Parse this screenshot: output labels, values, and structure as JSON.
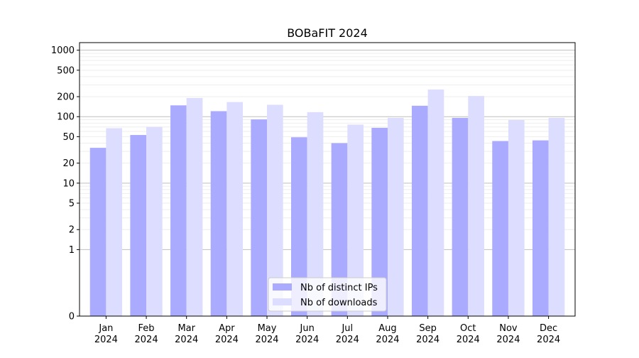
{
  "chart_data": {
    "type": "bar",
    "title": "BOBaFIT 2024",
    "xlabel": "",
    "ylabel": "",
    "yscale": "symlog",
    "ylim": [
      0,
      1300
    ],
    "yticks": [
      0,
      1,
      2,
      5,
      10,
      20,
      50,
      100,
      200,
      500,
      1000
    ],
    "ytick_labels": [
      "0",
      "1",
      "2",
      "5",
      "10",
      "20",
      "50",
      "100",
      "200",
      "500",
      "1000"
    ],
    "grid": true,
    "legend_position": "lower-center",
    "categories": [
      "Jan\n2024",
      "Feb\n2024",
      "Mar\n2024",
      "Apr\n2024",
      "May\n2024",
      "Jun\n2024",
      "Jul\n2024",
      "Aug\n2024",
      "Sep\n2024",
      "Oct\n2024",
      "Nov\n2024",
      "Dec\n2024"
    ],
    "series": [
      {
        "name": "Nb of distinct IPs",
        "color": "#aaaaff",
        "values": [
          34,
          53,
          148,
          121,
          91,
          49,
          40,
          68,
          146,
          96,
          43,
          44
        ]
      },
      {
        "name": "Nb of downloads",
        "color": "#ddddff",
        "values": [
          67,
          70,
          191,
          166,
          151,
          117,
          76,
          96,
          256,
          205,
          89,
          96
        ]
      }
    ]
  }
}
